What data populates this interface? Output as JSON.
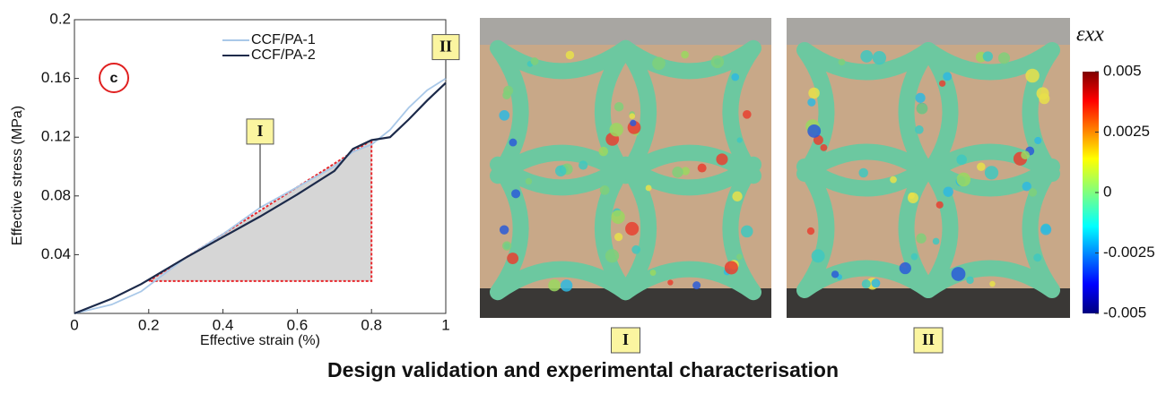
{
  "chart_data": [
    {
      "type": "line",
      "panel_label": "c",
      "x_label": "Effective strain (%)",
      "y_label": "Effective stress (MPa)",
      "x": [
        0,
        0.1,
        0.18,
        0.3,
        0.4,
        0.5,
        0.6,
        0.7,
        0.75,
        0.8,
        0.85,
        0.9,
        0.95,
        1
      ],
      "series": [
        {
          "name": "CCF/PA-1",
          "color": "#a9c8e8",
          "values": [
            0,
            0.006,
            0.015,
            0.038,
            0.054,
            0.072,
            0.086,
            0.1,
            0.11,
            0.115,
            0.125,
            0.14,
            0.152,
            0.16
          ]
        },
        {
          "name": "CCF/PA-2",
          "color": "#1c2a4a",
          "values": [
            0,
            0.01,
            0.02,
            0.038,
            0.052,
            0.066,
            0.081,
            0.097,
            0.112,
            0.118,
            0.12,
            0.132,
            0.145,
            0.157
          ]
        }
      ],
      "region": {
        "x": [
          0.2,
          0.8,
          0.8
        ],
        "y": [
          0.022,
          0.118,
          0.022
        ],
        "color": "#e8262b"
      },
      "annotations": [
        {
          "label": "I",
          "x": 0.5,
          "y": 0.072
        },
        {
          "label": "II",
          "x": 1,
          "y": 0.16
        }
      ],
      "xlim": [
        0,
        1
      ],
      "ylim": [
        0,
        0.2
      ],
      "xticks": [
        0,
        0.2,
        0.4,
        0.6,
        0.8,
        1
      ],
      "yticks": [
        0.04,
        0.08,
        0.12,
        0.16,
        0.2
      ]
    },
    {
      "type": "colorbar",
      "title": "εxx",
      "ylim": [
        -0.005,
        0.005
      ],
      "yticks": [
        0.005,
        0.0025,
        0,
        -0.0025,
        -0.005
      ]
    }
  ],
  "images": [
    {
      "label": "I"
    },
    {
      "label": "II"
    }
  ],
  "caption": "Design validation and experimental characterisation"
}
